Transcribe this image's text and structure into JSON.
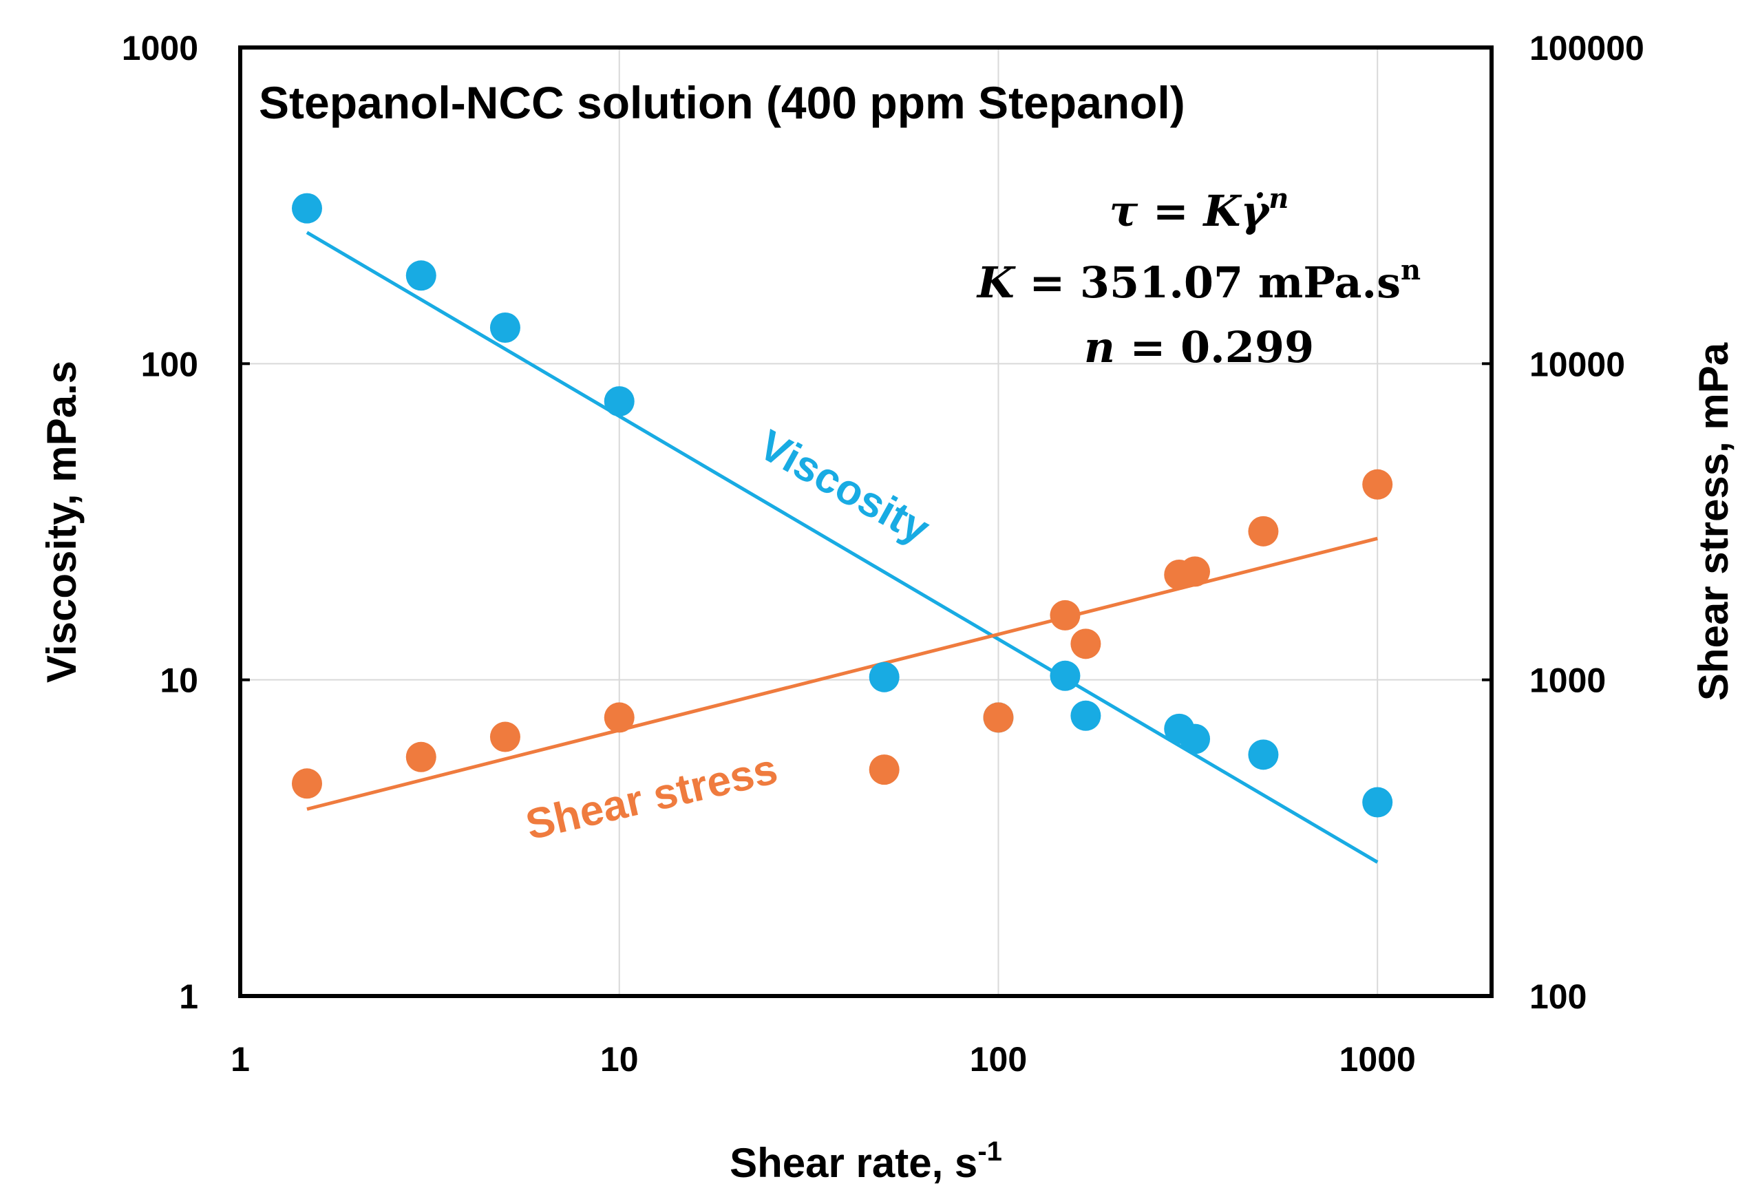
{
  "chart_data": {
    "type": "scatter",
    "title": "Stepanol-NCC solution (400 ppm Stepanol)",
    "xlabel": "Shear rate, s",
    "xlabel_superscript": "-1",
    "ylabel_left": "Viscosity, mPa.s",
    "ylabel_right": "Shear stress, mPa",
    "x_scale": "log",
    "y_left_scale": "log",
    "y_right_scale": "log",
    "xlim": [
      1,
      2000
    ],
    "ylim_left": [
      1,
      1000
    ],
    "ylim_right": [
      100,
      100000
    ],
    "grid": true,
    "x_ticks": [
      "1",
      "10",
      "100",
      "1000"
    ],
    "y_left_ticks": [
      "1",
      "10",
      "100",
      "1000"
    ],
    "y_right_ticks": [
      "100",
      "1000",
      "10000",
      "100000"
    ],
    "equation": {
      "line1_lhs": "τ",
      "line1_eq": " = ",
      "line1_K": "K",
      "line1_gamma": "γ̇",
      "line1_exp": "n",
      "line2_K": "K",
      "line2_rest": " = 351.07 mPa.s",
      "line2_sup": "n",
      "line3_n": "n",
      "line3_rest": " = 0.299"
    },
    "series": [
      {
        "name": "Viscosity",
        "axis": "left",
        "color": "#18ABE3",
        "points": [
          [
            1.5,
            310
          ],
          [
            3.0,
            190
          ],
          [
            5.0,
            130
          ],
          [
            10.0,
            76
          ],
          [
            50,
            10.2
          ],
          [
            100,
            7.6
          ],
          [
            150,
            10.3
          ],
          [
            170,
            7.7
          ],
          [
            300,
            7.0
          ],
          [
            330,
            6.5
          ],
          [
            500,
            5.8
          ],
          [
            1000,
            4.1
          ]
        ],
        "fit": [
          [
            1.5,
            260
          ],
          [
            1000,
            2.65
          ]
        ]
      },
      {
        "name": "Shear stress",
        "axis": "right",
        "color": "#EF7B3E",
        "points": [
          [
            1.5,
            470
          ],
          [
            3.0,
            570
          ],
          [
            5.0,
            660
          ],
          [
            10.0,
            760
          ],
          [
            50,
            520
          ],
          [
            100,
            760
          ],
          [
            150,
            1600
          ],
          [
            170,
            1300
          ],
          [
            300,
            2150
          ],
          [
            330,
            2200
          ],
          [
            500,
            2950
          ],
          [
            1000,
            4150
          ]
        ],
        "fit": [
          [
            1.5,
            390
          ],
          [
            1000,
            2800
          ]
        ]
      }
    ]
  }
}
